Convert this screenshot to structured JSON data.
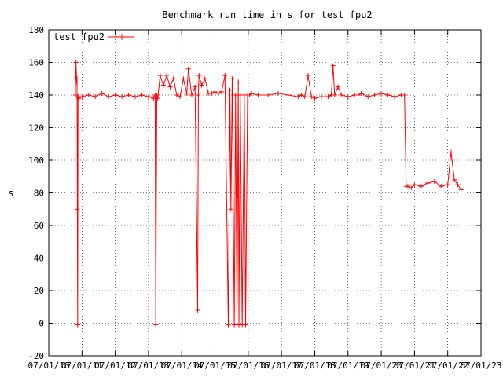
{
  "chart_data": {
    "type": "line",
    "title": "Benchmark run time in s for test_fpu2",
    "xlabel": "",
    "ylabel": "s",
    "ylim": [
      -20,
      180
    ],
    "yticks": [
      -20,
      0,
      20,
      40,
      60,
      80,
      100,
      120,
      140,
      160,
      180
    ],
    "xlim": [
      0,
      13
    ],
    "xtick_labels": [
      "07/01/10",
      "07/01/11",
      "07/01/12",
      "07/01/13",
      "07/01/14",
      "07/01/15",
      "07/01/16",
      "07/01/17",
      "07/01/18",
      "07/01/19",
      "07/01/20",
      "07/01/21",
      "07/01/22",
      "07/01/23"
    ],
    "legend_position": "top-left",
    "grid": true,
    "series": [
      {
        "name": "test_fpu2",
        "color": "#ff0000",
        "x": [
          0.8,
          0.82,
          0.84,
          0.85,
          0.86,
          0.87,
          0.88,
          0.9,
          1.0,
          1.2,
          1.4,
          1.6,
          1.8,
          2.0,
          2.2,
          2.4,
          2.6,
          2.8,
          3.0,
          3.15,
          3.2,
          3.22,
          3.25,
          3.28,
          3.35,
          3.45,
          3.55,
          3.65,
          3.75,
          3.85,
          3.95,
          4.05,
          4.15,
          4.2,
          4.3,
          4.4,
          4.48,
          4.5,
          4.52,
          4.6,
          4.7,
          4.8,
          4.9,
          5.0,
          5.1,
          5.2,
          5.3,
          5.4,
          5.45,
          5.48,
          5.52,
          5.58,
          5.62,
          5.66,
          5.7,
          5.72,
          5.76,
          5.82,
          5.88,
          5.92,
          5.98,
          6.04,
          6.1,
          6.3,
          6.6,
          6.9,
          7.2,
          7.5,
          7.6,
          7.7,
          7.8,
          7.9,
          8.0,
          8.2,
          8.4,
          8.5,
          8.55,
          8.6,
          8.7,
          8.8,
          9.0,
          9.2,
          9.3,
          9.4,
          9.6,
          9.8,
          10.0,
          10.2,
          10.4,
          10.6,
          10.7,
          10.75,
          10.8,
          10.9,
          11.0,
          11.2,
          11.4,
          11.6,
          11.8,
          12.0,
          12.1,
          12.2,
          12.3,
          12.4
        ],
        "y": [
          140,
          160,
          148,
          150,
          70,
          -1,
          139,
          138,
          139,
          140,
          139,
          141,
          139,
          140,
          139,
          140,
          139,
          140,
          139,
          138,
          140,
          -1,
          140,
          138,
          152,
          146,
          152,
          145,
          150,
          140,
          139,
          150,
          141,
          156,
          140,
          145,
          8,
          140,
          152,
          146,
          150,
          141,
          141,
          142,
          141,
          142,
          152,
          -1,
          143,
          70,
          150,
          -1,
          140,
          -1,
          148,
          -1,
          140,
          -1,
          140,
          -1,
          140,
          140,
          141,
          140,
          140,
          141,
          140,
          139,
          140,
          139,
          152,
          139,
          138,
          139,
          139,
          140,
          158,
          140,
          145,
          140,
          139,
          140,
          140,
          141,
          139,
          140,
          141,
          140,
          139,
          140,
          140,
          84,
          84,
          83,
          85,
          84,
          86,
          87,
          84,
          85,
          105,
          88,
          85,
          82
        ]
      }
    ]
  }
}
